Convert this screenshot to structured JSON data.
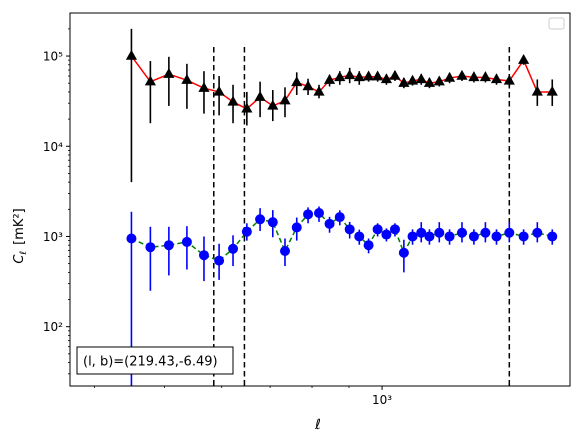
{
  "chart_data": {
    "type": "scatter",
    "xlabel": "ℓ",
    "ylabel_main": "C",
    "ylabel_sub": "ℓ",
    "ylabel_unit": "[mK²]",
    "xscale": "log",
    "yscale": "log",
    "xlim": [
      370,
      1820
    ],
    "ylim": [
      22,
      300000
    ],
    "x_ticks": [
      {
        "value": 1000,
        "label": "10³"
      }
    ],
    "y_ticks": [
      {
        "value": 100,
        "label": "10²"
      },
      {
        "value": 1000,
        "label": "10³"
      },
      {
        "value": 10000,
        "label": "10⁴"
      },
      {
        "value": 100000,
        "label": "10⁵"
      }
    ],
    "vlines": [
      585,
      645,
      1500
    ],
    "annotation": "(l, b)=(219.43,-6.49)",
    "legend": {
      "position": "top-right",
      "entries": []
    },
    "series": [
      {
        "marker": "triangle",
        "marker_color": "#000000",
        "line_color": "#ff0000",
        "line_style": "solid",
        "errorbar_color": "#000000",
        "x": [
          450,
          478,
          507,
          537,
          567,
          595,
          622,
          650,
          678,
          706,
          734,
          762,
          790,
          818,
          846,
          874,
          902,
          930,
          958,
          986,
          1014,
          1042,
          1072,
          1102,
          1133,
          1163,
          1200,
          1240,
          1290,
          1340,
          1390,
          1440,
          1500,
          1570,
          1640,
          1720
        ],
        "y": [
          100000,
          52000,
          63000,
          54000,
          44000,
          40000,
          31000,
          26000,
          35000,
          28000,
          32000,
          51000,
          46000,
          40000,
          54000,
          58000,
          61000,
          58000,
          59000,
          59000,
          55000,
          60000,
          50000,
          53000,
          55000,
          50000,
          52000,
          57000,
          60000,
          58000,
          58000,
          55000,
          53000,
          90000,
          40000,
          40000
        ],
        "yerr_low": [
          4000,
          18000,
          28000,
          26000,
          23000,
          22000,
          18000,
          17000,
          21000,
          19000,
          21000,
          37000,
          37000,
          34000,
          46000,
          48000,
          50000,
          48000,
          52000,
          52000,
          48000,
          53000,
          44000,
          47000,
          48000,
          44000,
          46000,
          50000,
          53000,
          51000,
          51000,
          48000,
          46000,
          80000,
          28000,
          28000
        ],
        "yerr_high": [
          200000,
          88000,
          98000,
          82000,
          68000,
          60000,
          48000,
          40000,
          52000,
          42000,
          45000,
          66000,
          56000,
          48000,
          62000,
          68000,
          74000,
          68000,
          66000,
          66000,
          62000,
          68000,
          57000,
          60000,
          63000,
          57000,
          59000,
          65000,
          67000,
          65000,
          65000,
          62000,
          60000,
          100000,
          55000,
          55000
        ]
      },
      {
        "marker": "circle",
        "marker_color": "#0000ff",
        "line_color": "#008000",
        "line_style": "dashed",
        "errorbar_color": "#0000ff",
        "x": [
          450,
          478,
          507,
          537,
          567,
          595,
          622,
          650,
          678,
          706,
          734,
          762,
          790,
          818,
          846,
          874,
          902,
          930,
          958,
          986,
          1014,
          1042,
          1072,
          1102,
          1133,
          1163,
          1200,
          1240,
          1290,
          1340,
          1390,
          1440,
          1500,
          1570,
          1640,
          1720
        ],
        "y": [
          950,
          760,
          800,
          870,
          620,
          540,
          730,
          1130,
          1550,
          1440,
          690,
          1260,
          1760,
          1820,
          1380,
          1640,
          1200,
          1000,
          800,
          1200,
          1050,
          1200,
          660,
          1000,
          1100,
          1000,
          1100,
          1000,
          1100,
          1000,
          1100,
          1000,
          1100,
          1000,
          1100,
          1000
        ],
        "yerr_low": [
          10,
          250,
          370,
          430,
          320,
          330,
          470,
          900,
          1150,
          980,
          470,
          900,
          1400,
          1450,
          1100,
          1330,
          950,
          810,
          650,
          1000,
          880,
          1000,
          400,
          810,
          860,
          810,
          860,
          810,
          860,
          810,
          860,
          810,
          860,
          810,
          860,
          810
        ],
        "yerr_high": [
          1880,
          1280,
          1280,
          1300,
          1000,
          830,
          1030,
          1400,
          2060,
          1960,
          950,
          1620,
          2100,
          2150,
          1650,
          1950,
          1450,
          1190,
          950,
          1400,
          1230,
          1400,
          920,
          1200,
          1440,
          1200,
          1440,
          1200,
          1440,
          1200,
          1440,
          1200,
          1440,
          1200,
          1440,
          1200
        ]
      }
    ]
  }
}
